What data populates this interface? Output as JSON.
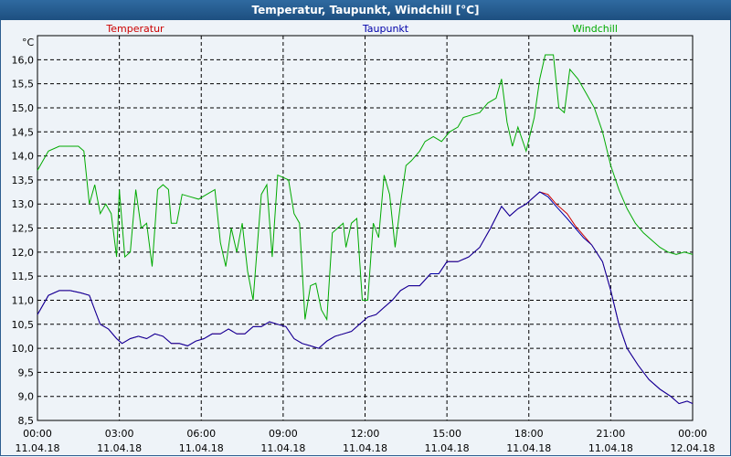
{
  "chart_data": {
    "type": "line",
    "title": "Temperatur, Taupunkt, Windchill [°C]",
    "yunit": "°C",
    "ylim": [
      8.5,
      16.5
    ],
    "yticks": [
      "8,5",
      "9,0",
      "9,5",
      "10,0",
      "10,5",
      "11,0",
      "11,5",
      "12,0",
      "12,5",
      "13,0",
      "13,5",
      "14,0",
      "14,5",
      "15,0",
      "15,5",
      "16,0"
    ],
    "xlim": [
      0,
      24
    ],
    "xticks": [
      {
        "time": "00:00",
        "date": "11.04.18"
      },
      {
        "time": "03:00",
        "date": "11.04.18"
      },
      {
        "time": "06:00",
        "date": "11.04.18"
      },
      {
        "time": "09:00",
        "date": "11.04.18"
      },
      {
        "time": "12:00",
        "date": "11.04.18"
      },
      {
        "time": "15:00",
        "date": "11.04.18"
      },
      {
        "time": "18:00",
        "date": "11.04.18"
      },
      {
        "time": "21:00",
        "date": "11.04.18"
      },
      {
        "time": "00:00",
        "date": "12.04.18"
      }
    ],
    "grid": true,
    "legend_position": "top",
    "series": [
      {
        "name": "Temperatur",
        "color": "#cc0000",
        "points": [
          [
            0,
            10.7
          ],
          [
            0.4,
            11.1
          ],
          [
            0.8,
            11.2
          ],
          [
            1.2,
            11.2
          ],
          [
            1.6,
            11.15
          ],
          [
            1.9,
            11.1
          ],
          [
            2.1,
            10.8
          ],
          [
            2.3,
            10.5
          ],
          [
            2.6,
            10.4
          ],
          [
            2.9,
            10.2
          ],
          [
            3.1,
            10.1
          ],
          [
            3.4,
            10.2
          ],
          [
            3.7,
            10.25
          ],
          [
            4.0,
            10.2
          ],
          [
            4.3,
            10.3
          ],
          [
            4.6,
            10.25
          ],
          [
            4.9,
            10.1
          ],
          [
            5.2,
            10.1
          ],
          [
            5.5,
            10.05
          ],
          [
            5.8,
            10.15
          ],
          [
            6.1,
            10.2
          ],
          [
            6.4,
            10.3
          ],
          [
            6.7,
            10.3
          ],
          [
            7.0,
            10.4
          ],
          [
            7.3,
            10.3
          ],
          [
            7.6,
            10.3
          ],
          [
            7.9,
            10.45
          ],
          [
            8.2,
            10.45
          ],
          [
            8.5,
            10.55
          ],
          [
            8.8,
            10.5
          ],
          [
            9.1,
            10.45
          ],
          [
            9.4,
            10.2
          ],
          [
            9.7,
            10.1
          ],
          [
            10.0,
            10.05
          ],
          [
            10.3,
            10.0
          ],
          [
            10.6,
            10.15
          ],
          [
            10.9,
            10.25
          ],
          [
            11.2,
            10.3
          ],
          [
            11.5,
            10.35
          ],
          [
            11.8,
            10.5
          ],
          [
            12.1,
            10.65
          ],
          [
            12.4,
            10.7
          ],
          [
            12.7,
            10.85
          ],
          [
            13.0,
            11.0
          ],
          [
            13.3,
            11.2
          ],
          [
            13.6,
            11.3
          ],
          [
            14.0,
            11.3
          ],
          [
            14.4,
            11.55
          ],
          [
            14.7,
            11.55
          ],
          [
            15.0,
            11.8
          ],
          [
            15.4,
            11.8
          ],
          [
            15.8,
            11.9
          ],
          [
            16.2,
            12.1
          ],
          [
            16.6,
            12.5
          ],
          [
            17.0,
            12.95
          ],
          [
            17.3,
            12.75
          ],
          [
            17.6,
            12.9
          ],
          [
            17.9,
            13.0
          ],
          [
            18.1,
            13.1
          ],
          [
            18.4,
            13.25
          ],
          [
            18.7,
            13.2
          ],
          [
            19.0,
            13.0
          ],
          [
            19.4,
            12.8
          ],
          [
            19.7,
            12.55
          ],
          [
            20.0,
            12.35
          ],
          [
            20.3,
            12.15
          ],
          [
            20.7,
            11.8
          ],
          [
            21.0,
            11.2
          ],
          [
            21.3,
            10.5
          ],
          [
            21.6,
            10.0
          ],
          [
            22.0,
            9.65
          ],
          [
            22.4,
            9.35
          ],
          [
            22.8,
            9.15
          ],
          [
            23.2,
            9.0
          ],
          [
            23.5,
            8.85
          ],
          [
            23.8,
            8.9
          ],
          [
            24.0,
            8.85
          ]
        ]
      },
      {
        "name": "Taupunkt",
        "color": "#0000aa",
        "points": [
          [
            0,
            10.7
          ],
          [
            0.4,
            11.1
          ],
          [
            0.8,
            11.2
          ],
          [
            1.2,
            11.2
          ],
          [
            1.6,
            11.15
          ],
          [
            1.9,
            11.1
          ],
          [
            2.1,
            10.8
          ],
          [
            2.3,
            10.5
          ],
          [
            2.6,
            10.4
          ],
          [
            2.9,
            10.2
          ],
          [
            3.1,
            10.1
          ],
          [
            3.4,
            10.2
          ],
          [
            3.7,
            10.25
          ],
          [
            4.0,
            10.2
          ],
          [
            4.3,
            10.3
          ],
          [
            4.6,
            10.25
          ],
          [
            4.9,
            10.1
          ],
          [
            5.2,
            10.1
          ],
          [
            5.5,
            10.05
          ],
          [
            5.8,
            10.15
          ],
          [
            6.1,
            10.2
          ],
          [
            6.4,
            10.3
          ],
          [
            6.7,
            10.3
          ],
          [
            7.0,
            10.4
          ],
          [
            7.3,
            10.3
          ],
          [
            7.6,
            10.3
          ],
          [
            7.9,
            10.45
          ],
          [
            8.2,
            10.45
          ],
          [
            8.5,
            10.55
          ],
          [
            8.8,
            10.5
          ],
          [
            9.1,
            10.45
          ],
          [
            9.4,
            10.2
          ],
          [
            9.7,
            10.1
          ],
          [
            10.0,
            10.05
          ],
          [
            10.3,
            10.0
          ],
          [
            10.6,
            10.15
          ],
          [
            10.9,
            10.25
          ],
          [
            11.2,
            10.3
          ],
          [
            11.5,
            10.35
          ],
          [
            11.8,
            10.5
          ],
          [
            12.1,
            10.65
          ],
          [
            12.4,
            10.7
          ],
          [
            12.7,
            10.85
          ],
          [
            13.0,
            11.0
          ],
          [
            13.3,
            11.2
          ],
          [
            13.6,
            11.3
          ],
          [
            14.0,
            11.3
          ],
          [
            14.4,
            11.55
          ],
          [
            14.7,
            11.55
          ],
          [
            15.0,
            11.8
          ],
          [
            15.4,
            11.8
          ],
          [
            15.8,
            11.9
          ],
          [
            16.2,
            12.1
          ],
          [
            16.6,
            12.5
          ],
          [
            17.0,
            12.95
          ],
          [
            17.3,
            12.75
          ],
          [
            17.6,
            12.9
          ],
          [
            17.9,
            13.0
          ],
          [
            18.1,
            13.1
          ],
          [
            18.4,
            13.25
          ],
          [
            18.7,
            13.15
          ],
          [
            19.0,
            12.95
          ],
          [
            19.4,
            12.7
          ],
          [
            19.7,
            12.5
          ],
          [
            20.0,
            12.3
          ],
          [
            20.3,
            12.15
          ],
          [
            20.7,
            11.8
          ],
          [
            21.0,
            11.2
          ],
          [
            21.3,
            10.5
          ],
          [
            21.6,
            10.0
          ],
          [
            22.0,
            9.65
          ],
          [
            22.4,
            9.35
          ],
          [
            22.8,
            9.15
          ],
          [
            23.2,
            9.0
          ],
          [
            23.5,
            8.85
          ],
          [
            23.8,
            8.9
          ],
          [
            24.0,
            8.85
          ]
        ]
      },
      {
        "name": "Windchill",
        "color": "#00aa00",
        "points": [
          [
            0,
            13.7
          ],
          [
            0.4,
            14.1
          ],
          [
            0.8,
            14.2
          ],
          [
            1.2,
            14.2
          ],
          [
            1.5,
            14.2
          ],
          [
            1.7,
            14.1
          ],
          [
            1.9,
            13.0
          ],
          [
            2.1,
            13.4
          ],
          [
            2.3,
            12.8
          ],
          [
            2.5,
            13.0
          ],
          [
            2.7,
            12.8
          ],
          [
            2.9,
            11.9
          ],
          [
            3.0,
            13.3
          ],
          [
            3.2,
            11.9
          ],
          [
            3.4,
            12.0
          ],
          [
            3.6,
            13.3
          ],
          [
            3.8,
            12.5
          ],
          [
            4.0,
            12.6
          ],
          [
            4.2,
            11.7
          ],
          [
            4.4,
            13.3
          ],
          [
            4.6,
            13.4
          ],
          [
            4.8,
            13.3
          ],
          [
            4.9,
            12.6
          ],
          [
            5.1,
            12.6
          ],
          [
            5.3,
            13.2
          ],
          [
            5.6,
            13.15
          ],
          [
            5.9,
            13.1
          ],
          [
            6.2,
            13.2
          ],
          [
            6.5,
            13.3
          ],
          [
            6.7,
            12.2
          ],
          [
            6.9,
            11.7
          ],
          [
            7.1,
            12.5
          ],
          [
            7.3,
            12.0
          ],
          [
            7.5,
            12.6
          ],
          [
            7.7,
            11.6
          ],
          [
            7.9,
            11.0
          ],
          [
            8.2,
            13.2
          ],
          [
            8.4,
            13.4
          ],
          [
            8.6,
            11.9
          ],
          [
            8.8,
            13.6
          ],
          [
            9.0,
            13.55
          ],
          [
            9.2,
            13.5
          ],
          [
            9.4,
            12.8
          ],
          [
            9.6,
            12.6
          ],
          [
            9.8,
            10.6
          ],
          [
            10.0,
            11.3
          ],
          [
            10.2,
            11.35
          ],
          [
            10.4,
            10.8
          ],
          [
            10.6,
            10.6
          ],
          [
            10.8,
            12.4
          ],
          [
            11.0,
            12.5
          ],
          [
            11.2,
            12.6
          ],
          [
            11.3,
            12.1
          ],
          [
            11.5,
            12.6
          ],
          [
            11.7,
            12.7
          ],
          [
            11.9,
            11.0
          ],
          [
            12.1,
            11.0
          ],
          [
            12.3,
            12.6
          ],
          [
            12.5,
            12.3
          ],
          [
            12.7,
            13.6
          ],
          [
            12.9,
            13.2
          ],
          [
            13.1,
            12.1
          ],
          [
            13.3,
            13.0
          ],
          [
            13.5,
            13.8
          ],
          [
            13.7,
            13.9
          ],
          [
            14.0,
            14.1
          ],
          [
            14.2,
            14.3
          ],
          [
            14.5,
            14.4
          ],
          [
            14.8,
            14.3
          ],
          [
            15.1,
            14.5
          ],
          [
            15.4,
            14.6
          ],
          [
            15.6,
            14.8
          ],
          [
            15.9,
            14.85
          ],
          [
            16.2,
            14.9
          ],
          [
            16.5,
            15.1
          ],
          [
            16.8,
            15.2
          ],
          [
            17.0,
            15.6
          ],
          [
            17.2,
            14.7
          ],
          [
            17.4,
            14.2
          ],
          [
            17.6,
            14.6
          ],
          [
            17.9,
            14.1
          ],
          [
            18.2,
            14.8
          ],
          [
            18.4,
            15.6
          ],
          [
            18.6,
            16.1
          ],
          [
            18.9,
            16.1
          ],
          [
            19.1,
            15.0
          ],
          [
            19.3,
            14.9
          ],
          [
            19.5,
            15.8
          ],
          [
            19.8,
            15.6
          ],
          [
            20.1,
            15.3
          ],
          [
            20.4,
            15.0
          ],
          [
            20.7,
            14.5
          ],
          [
            21.0,
            13.8
          ],
          [
            21.3,
            13.3
          ],
          [
            21.6,
            12.9
          ],
          [
            21.9,
            12.6
          ],
          [
            22.2,
            12.4
          ],
          [
            22.5,
            12.25
          ],
          [
            22.8,
            12.1
          ],
          [
            23.1,
            12.0
          ],
          [
            23.4,
            11.95
          ],
          [
            23.7,
            12.0
          ],
          [
            24.0,
            11.95
          ]
        ]
      }
    ]
  }
}
